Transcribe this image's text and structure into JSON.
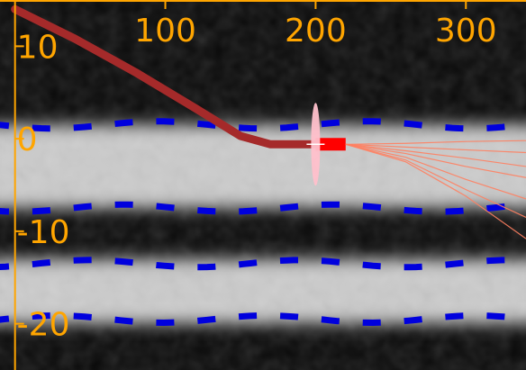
{
  "colors": {
    "axis": "#ffa500",
    "lane_lines": "#0000dd",
    "ego_path": "#a52a2a",
    "current_segment": "#ff0000",
    "position_marker": "#ffc0cb",
    "predicted_paths": "#ff8060",
    "road_surface": "#e0e0e0"
  },
  "chart_data": {
    "type": "line",
    "title": "",
    "xlabel": "",
    "ylabel": "",
    "x_ticks": [
      "100",
      "200",
      "300"
    ],
    "y_ticks": [
      "10",
      "0",
      "-10",
      "-20"
    ],
    "xlim": [
      -10,
      340
    ],
    "ylim": [
      -25,
      15
    ],
    "lane_boundaries": [
      1.5,
      -7.5,
      -13.5,
      -19.5
    ],
    "road_bands": [
      {
        "center": -3.0,
        "half_width": 4.5
      },
      {
        "center": -16.5,
        "half_width": 3.5
      }
    ],
    "ego_path": {
      "x": [
        0,
        40,
        80,
        120,
        150,
        170,
        185,
        200
      ],
      "y": [
        14,
        10.8,
        7.2,
        3.3,
        0.3,
        -0.6,
        -0.6,
        -0.6
      ]
    },
    "current_segment": {
      "x": [
        200,
        220
      ],
      "y": [
        -0.6,
        -0.6
      ]
    },
    "position_marker": {
      "x": 200,
      "y": -0.6
    },
    "predicted_paths": [
      {
        "x": [
          220,
          260,
          300,
          340
        ],
        "y": [
          -0.6,
          -0.5,
          -0.3,
          -0.2
        ]
      },
      {
        "x": [
          220,
          260,
          300,
          340
        ],
        "y": [
          -0.6,
          -0.9,
          -1.2,
          -1.5
        ]
      },
      {
        "x": [
          220,
          260,
          300,
          340
        ],
        "y": [
          -0.6,
          -1.3,
          -2.1,
          -3.0
        ]
      },
      {
        "x": [
          220,
          260,
          300,
          340
        ],
        "y": [
          -0.6,
          -1.6,
          -3.0,
          -4.2
        ]
      },
      {
        "x": [
          220,
          260,
          300,
          340
        ],
        "y": [
          -0.6,
          -2.0,
          -4.4,
          -6.5
        ]
      },
      {
        "x": [
          220,
          260,
          300,
          340
        ],
        "y": [
          -0.6,
          -2.3,
          -5.5,
          -8.5
        ]
      },
      {
        "x": [
          220,
          260,
          300,
          340
        ],
        "y": [
          -0.6,
          -2.5,
          -6.2,
          -10.8
        ]
      }
    ]
  }
}
